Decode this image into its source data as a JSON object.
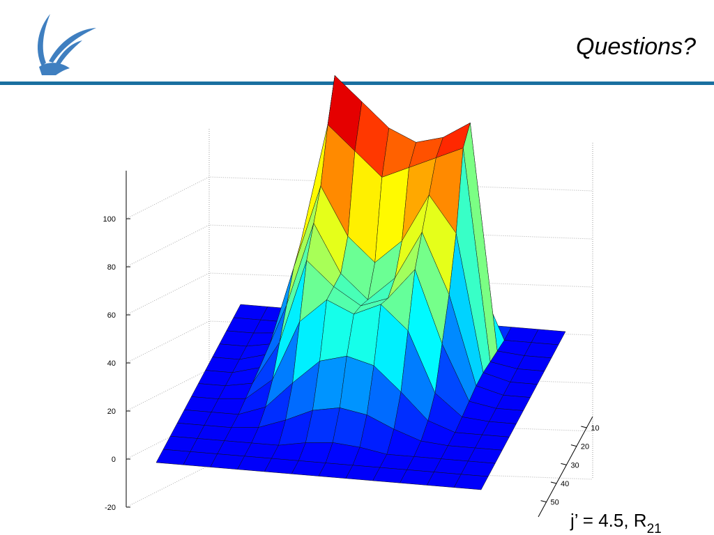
{
  "header": {
    "title": "Questions?"
  },
  "caption": {
    "text": "j’ = 4.5, R",
    "subscript": "21"
  },
  "chart_data": {
    "type": "surface",
    "zlim": [
      -20,
      120
    ],
    "zticks": [
      -20,
      0,
      20,
      40,
      60,
      80,
      100
    ],
    "yticks": [
      10,
      20,
      30,
      40,
      50
    ],
    "z": [
      [
        0,
        0,
        0,
        0,
        0,
        0,
        0,
        0,
        0,
        0,
        0,
        0,
        0
      ],
      [
        0,
        0,
        0,
        0,
        0,
        0,
        0,
        0,
        0,
        0,
        0,
        0,
        0
      ],
      [
        0,
        0,
        0,
        0,
        0,
        2,
        3,
        2,
        0,
        0,
        0,
        0,
        0
      ],
      [
        0,
        0,
        0,
        1,
        5,
        10,
        12,
        10,
        5,
        1,
        0,
        0,
        0
      ],
      [
        0,
        0,
        0,
        4,
        15,
        25,
        28,
        25,
        15,
        4,
        0,
        0,
        0
      ],
      [
        0,
        0,
        1,
        10,
        35,
        45,
        40,
        45,
        35,
        10,
        1,
        0,
        0
      ],
      [
        0,
        0,
        2,
        20,
        55,
        45,
        38,
        42,
        55,
        25,
        2,
        0,
        0
      ],
      [
        0,
        0,
        3,
        30,
        65,
        45,
        35,
        45,
        65,
        40,
        3,
        0,
        0
      ],
      [
        0,
        0,
        3,
        40,
        75,
        55,
        45,
        55,
        75,
        60,
        3,
        0,
        0
      ],
      [
        0,
        0,
        2,
        45,
        95,
        85,
        75,
        80,
        85,
        90,
        2,
        0,
        0
      ],
      [
        0,
        0,
        1,
        30,
        110,
        100,
        90,
        85,
        88,
        95,
        1,
        0,
        0
      ],
      [
        0,
        0,
        0,
        8,
        40,
        45,
        35,
        30,
        30,
        25,
        0,
        0,
        0
      ],
      [
        0,
        0,
        0,
        0,
        0,
        0,
        0,
        0,
        0,
        0,
        0,
        0,
        0
      ]
    ]
  }
}
